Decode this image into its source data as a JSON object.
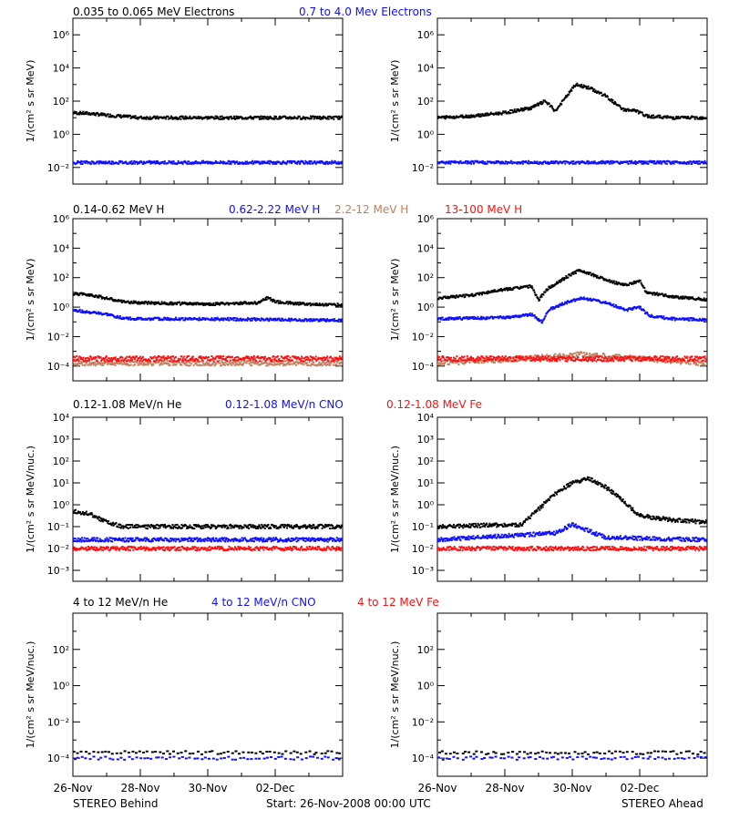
{
  "colors": {
    "black": "#000000",
    "blue": "#1010ff",
    "tan": "#c08060",
    "red": "#ff1010"
  },
  "footer": {
    "left": "STEREO Behind",
    "center": "Start: 26-Nov-2008 00:00 UTC",
    "right": "STEREO Ahead"
  },
  "x_tick_labels": [
    "26-Nov",
    "28-Nov",
    "30-Nov",
    "02-Dec"
  ],
  "rows": [
    {
      "legend": [
        {
          "text": "0.035 to 0.065 MeV Electrons",
          "color": "black"
        },
        {
          "text": "0.7 to 4.0 Mev Electrons",
          "color": "blue"
        }
      ],
      "ylabel": "1/(cm² s sr MeV)",
      "ylim_exp": [
        -3,
        7
      ],
      "ticks": [
        {
          "exp": 6,
          "label": "10⁶"
        },
        {
          "exp": 4,
          "label": "10⁴"
        },
        {
          "exp": 2,
          "label": "10²"
        },
        {
          "exp": 0,
          "label": "10⁰"
        },
        {
          "exp": -2,
          "label": "10⁻²"
        }
      ]
    },
    {
      "legend": [
        {
          "text": "0.14-0.62 MeV H",
          "color": "black"
        },
        {
          "text": "0.62-2.22 MeV H",
          "color": "blue"
        },
        {
          "text": "2.2-12 MeV H",
          "color": "tan"
        },
        {
          "text": "13-100 MeV H",
          "color": "red"
        }
      ],
      "ylabel": "1/(cm² s sr MeV)",
      "ylim_exp": [
        -5,
        6
      ],
      "ticks": [
        {
          "exp": 6,
          "label": "10⁶"
        },
        {
          "exp": 4,
          "label": "10⁴"
        },
        {
          "exp": 2,
          "label": "10²"
        },
        {
          "exp": 0,
          "label": "10⁰"
        },
        {
          "exp": -2,
          "label": "10⁻²"
        },
        {
          "exp": -4,
          "label": "10⁻⁴"
        }
      ]
    },
    {
      "legend": [
        {
          "text": "0.12-1.08 MeV/n He",
          "color": "black"
        },
        {
          "text": "0.12-1.08 MeV/n CNO",
          "color": "blue"
        },
        {
          "text": "0.12-1.08 MeV Fe",
          "color": "red"
        }
      ],
      "ylabel": "1/(cm² s sr MeV/nuc.)",
      "ylim_exp": [
        -3.5,
        4
      ],
      "ticks": [
        {
          "exp": 4,
          "label": "10⁴"
        },
        {
          "exp": 3,
          "label": "10³"
        },
        {
          "exp": 2,
          "label": "10²"
        },
        {
          "exp": 1,
          "label": "10¹"
        },
        {
          "exp": 0,
          "label": "10⁰"
        },
        {
          "exp": -1,
          "label": "10⁻¹"
        },
        {
          "exp": -2,
          "label": "10⁻²"
        },
        {
          "exp": -3,
          "label": "10⁻³"
        }
      ]
    },
    {
      "legend": [
        {
          "text": "4 to 12 MeV/n He",
          "color": "black"
        },
        {
          "text": "4 to 12 MeV/n CNO",
          "color": "blue"
        },
        {
          "text": "4 to 12 MeV Fe",
          "color": "red"
        }
      ],
      "ylabel": "1/(cm² s sr MeV/nuc.)",
      "ylim_exp": [
        -5,
        4
      ],
      "ticks": [
        {
          "exp": 2,
          "label": "10²"
        },
        {
          "exp": 0,
          "label": "10⁰"
        },
        {
          "exp": -2,
          "label": "10⁻²"
        },
        {
          "exp": -4,
          "label": "10⁻⁴"
        }
      ]
    }
  ],
  "chart_data": [
    {
      "type": "scatter",
      "panel": "Behind electrons",
      "ylog": true,
      "xlim_days": [
        0,
        8
      ],
      "series": [
        {
          "name": "0.035 to 0.065 MeV Electrons",
          "color": "black",
          "points": [
            [
              0,
              1.3
            ],
            [
              0.5,
              1.25
            ],
            [
              1,
              1.15
            ],
            [
              2,
              1.0
            ],
            [
              3,
              1.0
            ],
            [
              4,
              1.0
            ],
            [
              5,
              1.0
            ],
            [
              6,
              1.0
            ],
            [
              7,
              1.0
            ],
            [
              8,
              1.0
            ]
          ]
        },
        {
          "name": "0.7 to 4.0 Mev Electrons",
          "color": "blue",
          "points": [
            [
              0,
              -1.7
            ],
            [
              2,
              -1.7
            ],
            [
              4,
              -1.7
            ],
            [
              6,
              -1.7
            ],
            [
              8,
              -1.7
            ]
          ]
        }
      ]
    },
    {
      "type": "scatter",
      "panel": "Ahead electrons",
      "ylog": true,
      "xlim_days": [
        0,
        8
      ],
      "series": [
        {
          "name": "0.035 to 0.065 MeV Electrons",
          "color": "black",
          "points": [
            [
              0,
              1.0
            ],
            [
              1,
              1.1
            ],
            [
              2,
              1.3
            ],
            [
              2.8,
              1.6
            ],
            [
              3.2,
              2.0
            ],
            [
              3.5,
              1.4
            ],
            [
              3.8,
              2.2
            ],
            [
              4.1,
              3.0
            ],
            [
              4.5,
              2.8
            ],
            [
              5,
              2.3
            ],
            [
              5.5,
              1.5
            ],
            [
              5.9,
              1.4
            ],
            [
              6.2,
              1.1
            ],
            [
              7,
              1.0
            ],
            [
              8,
              1.0
            ]
          ]
        },
        {
          "name": "0.7 to 4.0 Mev Electrons",
          "color": "blue",
          "points": [
            [
              0,
              -1.7
            ],
            [
              2,
              -1.7
            ],
            [
              4,
              -1.7
            ],
            [
              6,
              -1.7
            ],
            [
              8,
              -1.7
            ]
          ]
        }
      ]
    },
    {
      "type": "scatter",
      "panel": "Behind protons",
      "ylog": true,
      "xlim_days": [
        0,
        8
      ],
      "series": [
        {
          "name": "0.14-0.62 MeV H",
          "color": "black",
          "points": [
            [
              0,
              0.9
            ],
            [
              0.5,
              0.85
            ],
            [
              1,
              0.6
            ],
            [
              1.5,
              0.35
            ],
            [
              2,
              0.3
            ],
            [
              3,
              0.25
            ],
            [
              4,
              0.2
            ],
            [
              5.5,
              0.3
            ],
            [
              5.8,
              0.65
            ],
            [
              6,
              0.35
            ],
            [
              7,
              0.2
            ],
            [
              8,
              0.15
            ]
          ]
        },
        {
          "name": "0.62-2.22 MeV H",
          "color": "blue",
          "points": [
            [
              0,
              -0.2
            ],
            [
              0.5,
              -0.35
            ],
            [
              1,
              -0.5
            ],
            [
              1.5,
              -0.75
            ],
            [
              2,
              -0.8
            ],
            [
              4,
              -0.8
            ],
            [
              6,
              -0.85
            ],
            [
              8,
              -0.9
            ]
          ]
        },
        {
          "name": "2.2-12 MeV H",
          "color": "tan",
          "points": [
            [
              0,
              -3.8
            ],
            [
              8,
              -3.8
            ]
          ]
        },
        {
          "name": "13-100 MeV H",
          "color": "red",
          "points": [
            [
              0,
              -3.5
            ],
            [
              8,
              -3.5
            ]
          ]
        }
      ]
    },
    {
      "type": "scatter",
      "panel": "Ahead protons",
      "ylog": true,
      "xlim_days": [
        0,
        8
      ],
      "series": [
        {
          "name": "0.14-0.62 MeV H",
          "color": "black",
          "points": [
            [
              0,
              0.6
            ],
            [
              1,
              0.8
            ],
            [
              2,
              1.2
            ],
            [
              2.8,
              1.4
            ],
            [
              3.0,
              0.5
            ],
            [
              3.3,
              1.3
            ],
            [
              3.8,
              2.0
            ],
            [
              4.2,
              2.5
            ],
            [
              4.6,
              2.2
            ],
            [
              5.2,
              1.7
            ],
            [
              5.6,
              1.5
            ],
            [
              6.0,
              1.8
            ],
            [
              6.2,
              1.0
            ],
            [
              7,
              0.7
            ],
            [
              8,
              0.5
            ]
          ]
        },
        {
          "name": "0.62-2.22 MeV H",
          "color": "blue",
          "points": [
            [
              0,
              -0.8
            ],
            [
              1,
              -0.75
            ],
            [
              2,
              -0.7
            ],
            [
              2.8,
              -0.5
            ],
            [
              3.1,
              -1.0
            ],
            [
              3.3,
              -0.2
            ],
            [
              3.8,
              0.3
            ],
            [
              4.3,
              0.6
            ],
            [
              5,
              0.3
            ],
            [
              5.6,
              -0.2
            ],
            [
              6.0,
              0.0
            ],
            [
              6.3,
              -0.6
            ],
            [
              7,
              -0.8
            ],
            [
              8,
              -0.85
            ]
          ]
        },
        {
          "name": "2.2-12 MeV H",
          "color": "tan",
          "points": [
            [
              0,
              -3.8
            ],
            [
              4,
              -3.3
            ],
            [
              4.2,
              -3.2
            ],
            [
              8,
              -3.8
            ]
          ]
        },
        {
          "name": "13-100 MeV H",
          "color": "red",
          "points": [
            [
              0,
              -3.5
            ],
            [
              8,
              -3.5
            ]
          ]
        }
      ]
    },
    {
      "type": "scatter",
      "panel": "Behind heavy ions low",
      "ylog": true,
      "xlim_days": [
        0,
        8
      ],
      "series": [
        {
          "name": "0.12-1.08 MeV/n He",
          "color": "black",
          "points": [
            [
              0,
              -0.3
            ],
            [
              0.5,
              -0.4
            ],
            [
              1,
              -0.8
            ],
            [
              1.5,
              -1.0
            ],
            [
              8,
              -1.0
            ]
          ]
        },
        {
          "name": "0.12-1.08 MeV/n CNO",
          "color": "blue",
          "points": [
            [
              0,
              -1.6
            ],
            [
              8,
              -1.6
            ]
          ]
        },
        {
          "name": "0.12-1.08 MeV Fe",
          "color": "red",
          "points": [
            [
              0,
              -2.0
            ],
            [
              8,
              -2.0
            ]
          ]
        }
      ]
    },
    {
      "type": "scatter",
      "panel": "Ahead heavy ions low",
      "ylog": true,
      "xlim_days": [
        0,
        8
      ],
      "series": [
        {
          "name": "0.12-1.08 MeV/n He",
          "color": "black",
          "points": [
            [
              0,
              -1.0
            ],
            [
              2.5,
              -0.9
            ],
            [
              3.0,
              -0.2
            ],
            [
              3.5,
              0.5
            ],
            [
              4,
              1.0
            ],
            [
              4.5,
              1.2
            ],
            [
              5.0,
              0.8
            ],
            [
              5.5,
              0.2
            ],
            [
              6.0,
              -0.5
            ],
            [
              6.5,
              -0.6
            ],
            [
              7,
              -0.7
            ],
            [
              8,
              -0.8
            ]
          ]
        },
        {
          "name": "0.12-1.08 MeV/n CNO",
          "color": "blue",
          "points": [
            [
              0,
              -1.6
            ],
            [
              3.5,
              -1.3
            ],
            [
              4.0,
              -0.9
            ],
            [
              4.5,
              -1.2
            ],
            [
              5.0,
              -1.5
            ],
            [
              8,
              -1.6
            ]
          ]
        },
        {
          "name": "0.12-1.08 MeV Fe",
          "color": "red",
          "points": [
            [
              0,
              -2.0
            ],
            [
              8,
              -2.0
            ]
          ]
        }
      ]
    },
    {
      "type": "scatter",
      "panel": "Behind heavy ions high",
      "ylog": true,
      "xlim_days": [
        0,
        8
      ],
      "series": [
        {
          "name": "4 to 12 MeV/n He",
          "color": "black",
          "points": [
            [
              0,
              -3.7
            ],
            [
              8,
              -3.7
            ]
          ]
        },
        {
          "name": "4 to 12 MeV/n CNO",
          "color": "blue",
          "points": [
            [
              0,
              -4.0
            ],
            [
              8,
              -4.0
            ]
          ]
        },
        {
          "name": "4 to 12 MeV Fe",
          "color": "red",
          "points": []
        }
      ]
    },
    {
      "type": "scatter",
      "panel": "Ahead heavy ions high",
      "ylog": true,
      "xlim_days": [
        0,
        8
      ],
      "series": [
        {
          "name": "4 to 12 MeV/n He",
          "color": "black",
          "points": [
            [
              0,
              -3.7
            ],
            [
              8,
              -3.7
            ]
          ]
        },
        {
          "name": "4 to 12 MeV/n CNO",
          "color": "blue",
          "points": [
            [
              0,
              -4.0
            ],
            [
              8,
              -4.0
            ]
          ]
        },
        {
          "name": "4 to 12 MeV Fe",
          "color": "red",
          "points": []
        }
      ]
    }
  ]
}
